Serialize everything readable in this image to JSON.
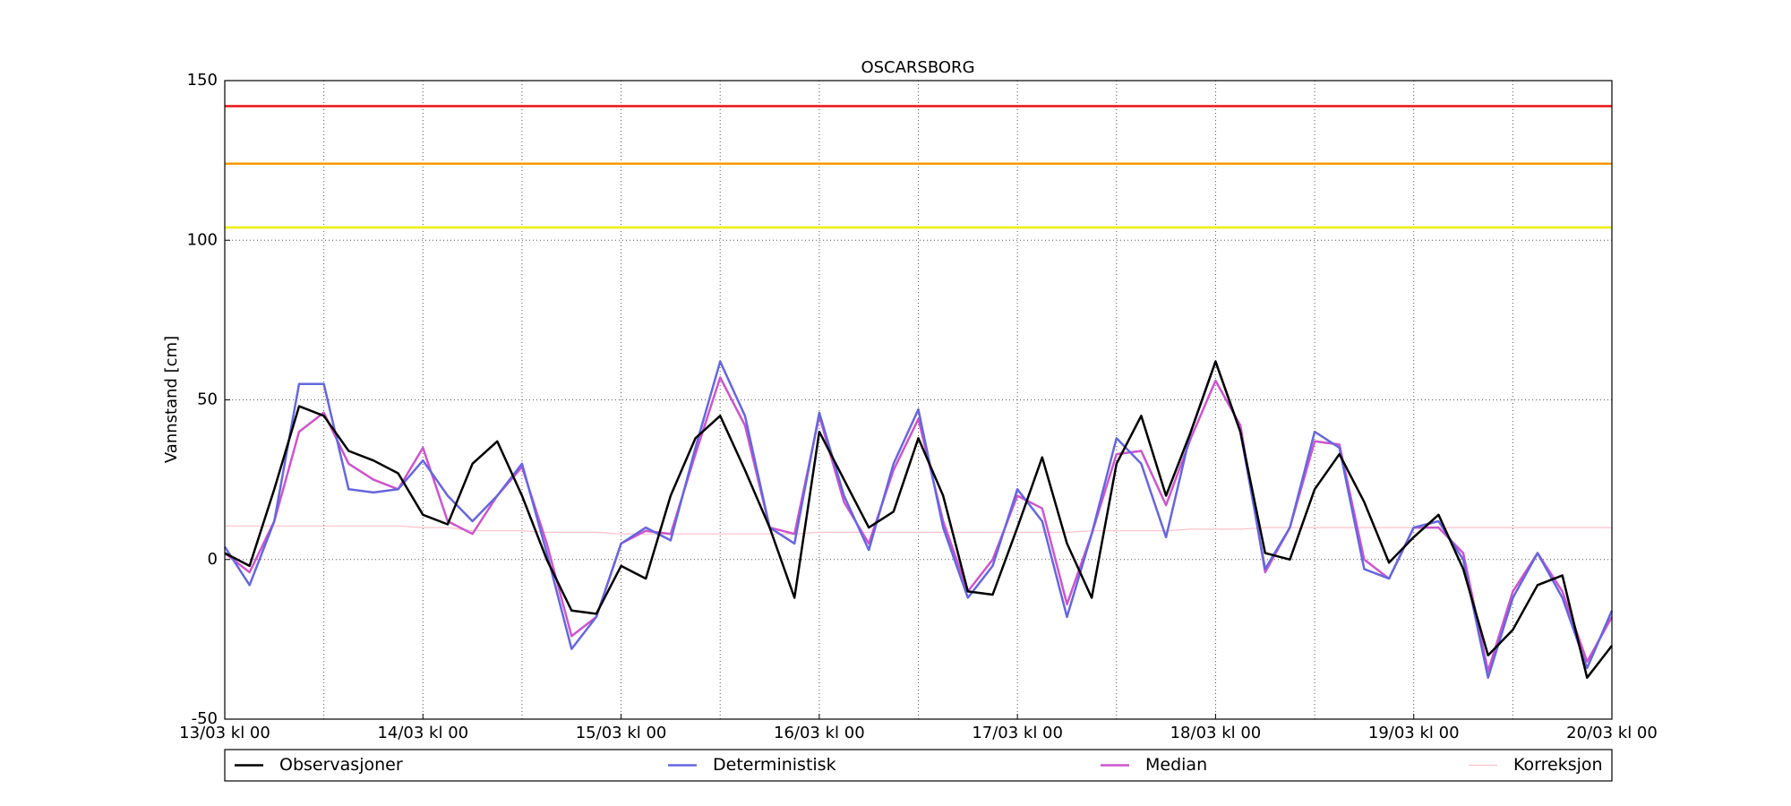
{
  "chart_data": {
    "type": "line",
    "title": "OSCARSBORG",
    "y_label": "Vannstand [cm]",
    "x": [
      0,
      3,
      6,
      9,
      12,
      15,
      18,
      21,
      24,
      27,
      30,
      33,
      36,
      39,
      42,
      45,
      48,
      51,
      54,
      57,
      60,
      63,
      66,
      69,
      72,
      75,
      78,
      81,
      84,
      87,
      90,
      93,
      96,
      99,
      102,
      105,
      108,
      111,
      114,
      117,
      120,
      123,
      126,
      129,
      132,
      135,
      138,
      141,
      144,
      147,
      150,
      153,
      156,
      159,
      162,
      165,
      168
    ],
    "xlim": [
      0,
      168
    ],
    "xticks": [
      {
        "value": 0,
        "label": "13/03 kl 00"
      },
      {
        "value": 24,
        "label": "14/03 kl 00"
      },
      {
        "value": 48,
        "label": "15/03 kl 00"
      },
      {
        "value": 72,
        "label": "16/03 kl 00"
      },
      {
        "value": 96,
        "label": "17/03 kl 00"
      },
      {
        "value": 120,
        "label": "18/03 kl 00"
      },
      {
        "value": 144,
        "label": "19/03 kl 00"
      },
      {
        "value": 168,
        "label": "20/03 kl 00"
      }
    ],
    "xminor_ticks": [
      12,
      36,
      60,
      84,
      108,
      132,
      156
    ],
    "ylim": [
      -50,
      150
    ],
    "yticks": [
      -50,
      0,
      50,
      100,
      150
    ],
    "grid": true,
    "hlines": [
      {
        "value": 142,
        "color": "#ee1111"
      },
      {
        "value": 124,
        "color": "#ff9900"
      },
      {
        "value": 104,
        "color": "#eeee00"
      }
    ],
    "legend": "bottom",
    "series": [
      {
        "name": "Observasjoner",
        "color": "#000000",
        "values": [
          2,
          -2,
          22,
          48,
          45,
          34,
          31,
          27,
          14,
          11,
          30,
          37,
          20,
          0,
          -16,
          -17,
          -2,
          -6,
          20,
          38,
          45,
          28,
          10,
          -12,
          40,
          25,
          10,
          15,
          38,
          20,
          -10,
          -11,
          10,
          32,
          5,
          -12,
          30,
          45,
          20,
          40,
          62,
          40,
          2,
          0,
          22,
          33,
          18,
          -1,
          7,
          14,
          -3,
          -30,
          -22,
          -8,
          -5,
          -37,
          -27
        ]
      },
      {
        "name": "Deterministisk",
        "color": "#6666dd",
        "values": [
          4,
          -8,
          12,
          55,
          55,
          22,
          21,
          22,
          31,
          20,
          12,
          20,
          30,
          2,
          -28,
          -18,
          5,
          10,
          6,
          35,
          62,
          45,
          10,
          5,
          46,
          20,
          3,
          30,
          47,
          10,
          -12,
          -2,
          22,
          12,
          -18,
          8,
          38,
          30,
          7,
          40,
          62,
          40,
          -3,
          10,
          40,
          35,
          -3,
          -6,
          10,
          12,
          0,
          -37,
          -12,
          2,
          -12,
          -34,
          -16
        ]
      },
      {
        "name": "Median",
        "color": "#cc55cc",
        "values": [
          2,
          -4,
          12,
          40,
          46,
          30,
          25,
          22,
          35,
          12,
          8,
          20,
          29,
          5,
          -24,
          -18,
          5,
          9,
          8,
          33,
          57,
          42,
          10,
          8,
          45,
          18,
          5,
          28,
          44,
          12,
          -10,
          0,
          20,
          16,
          -14,
          8,
          33,
          34,
          17,
          38,
          56,
          42,
          -4,
          10,
          37,
          36,
          0,
          -6,
          10,
          10,
          2,
          -35,
          -10,
          2,
          -10,
          -32,
          -18
        ]
      },
      {
        "name": "Korreksjon",
        "color": "#ffc0cb",
        "values": [
          10.5,
          10.5,
          10.5,
          10.5,
          10.5,
          10.5,
          10.5,
          10.5,
          10,
          10,
          9,
          9,
          9,
          8.5,
          8.5,
          8.5,
          8,
          8,
          8,
          8,
          8,
          8,
          8,
          8,
          8.5,
          8.5,
          8.5,
          8.5,
          8.5,
          8.5,
          8.5,
          8.5,
          8.5,
          8.5,
          8.5,
          9,
          9,
          9,
          9,
          9.5,
          9.5,
          9.5,
          10,
          10,
          10,
          10,
          10,
          10,
          10,
          10,
          10,
          10,
          10,
          10,
          10,
          10,
          10
        ]
      }
    ]
  }
}
